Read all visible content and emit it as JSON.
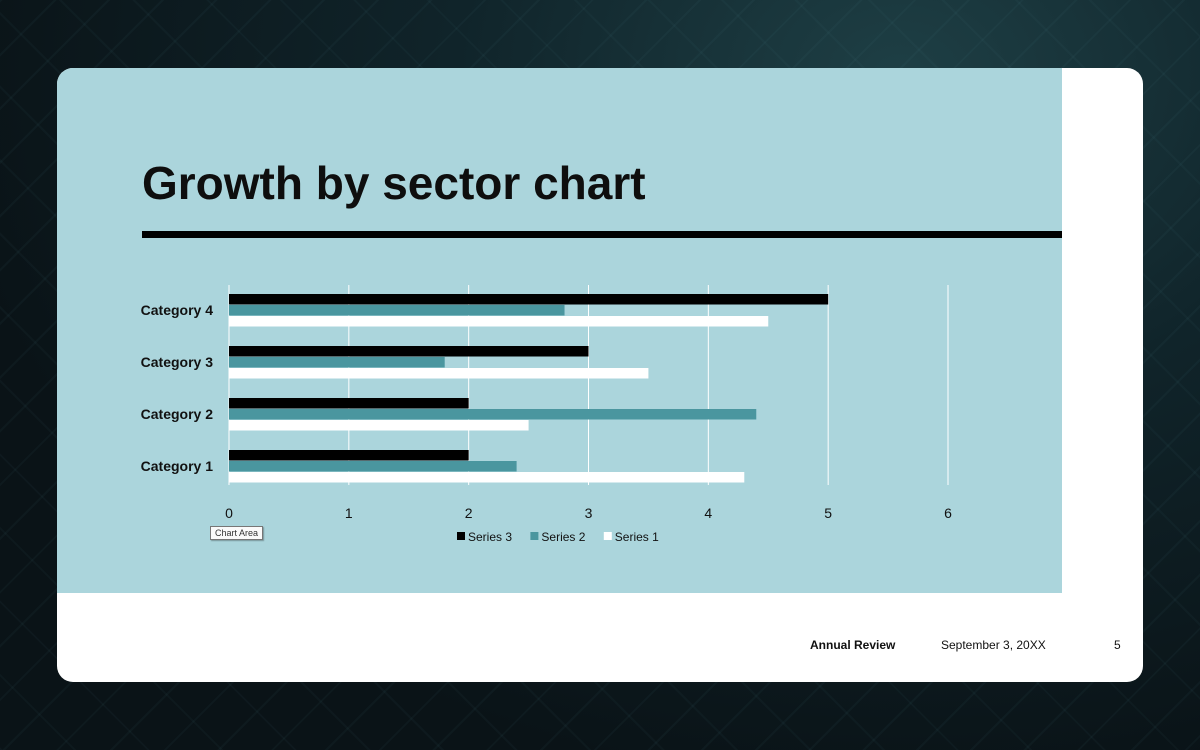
{
  "slide": {
    "title": "Growth by sector chart",
    "tooltip": "Chart Area",
    "footer_title": "Annual Review",
    "footer_date": "September 3, 20XX",
    "page_number": "5"
  },
  "colors": {
    "panel": "#abd5dc",
    "series_3": "#000000",
    "series_2": "#4a969f",
    "series_1": "#ffffff"
  },
  "chart_data": {
    "type": "bar",
    "orientation": "horizontal",
    "categories": [
      "Category 1",
      "Category 2",
      "Category 3",
      "Category 4"
    ],
    "series": [
      {
        "name": "Series 3",
        "color": "#000000",
        "values": [
          2.0,
          2.0,
          3.0,
          5.0
        ]
      },
      {
        "name": "Series 2",
        "color": "#4a969f",
        "values": [
          2.4,
          4.4,
          1.8,
          2.8
        ]
      },
      {
        "name": "Series 1",
        "color": "#ffffff",
        "values": [
          4.3,
          2.5,
          3.5,
          4.5
        ]
      }
    ],
    "xlim": [
      0,
      6
    ],
    "xticks": [
      "0",
      "1",
      "2",
      "3",
      "4",
      "5",
      "6"
    ],
    "grid": true,
    "legend": "bottom"
  }
}
